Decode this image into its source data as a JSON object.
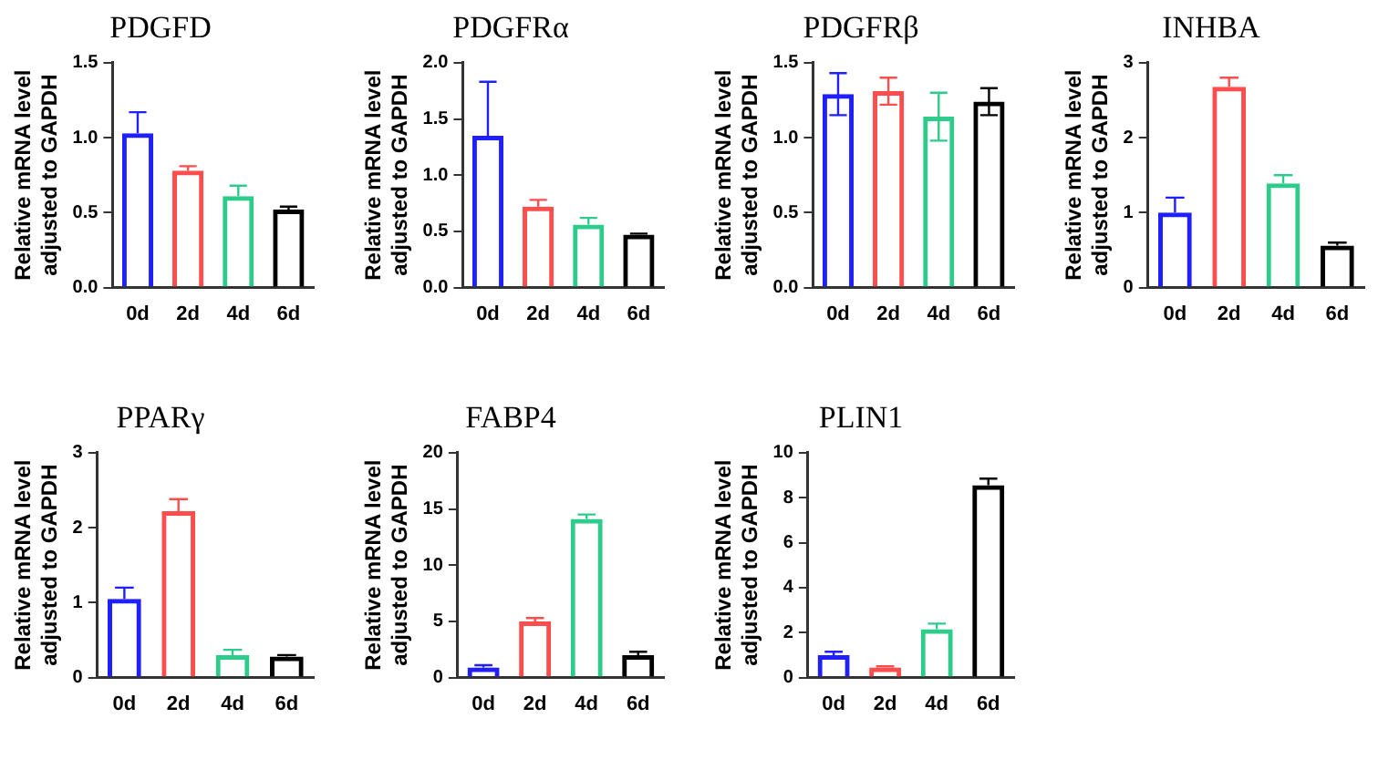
{
  "chart_data": [
    {
      "type": "bar",
      "title": "PDGFD",
      "ylabel": "Relative mRNA level adjusted to GAPDH",
      "categories": [
        "0d",
        "2d",
        "4d",
        "6d"
      ],
      "values": [
        1.03,
        0.78,
        0.61,
        0.52
      ],
      "colors": [
        "#1f1fff",
        "#ff4d4d",
        "#2ecc8a",
        "#000000"
      ],
      "errors": [
        [
          1.03,
          1.17
        ],
        [
          0.78,
          0.81
        ],
        [
          0.61,
          0.68
        ],
        [
          0.52,
          0.54
        ]
      ],
      "ylim": [
        0,
        1.5
      ],
      "yticks": [
        {
          "value": 0,
          "label": "0.0"
        },
        {
          "value": 0.5,
          "label": "0.5"
        },
        {
          "value": 1,
          "label": "1.0"
        },
        {
          "value": 1.5,
          "label": "1.5"
        }
      ],
      "grid": false,
      "legend": false
    },
    {
      "type": "bar",
      "title": "PDGFRα",
      "ylabel": "Relative mRNA level adjusted to GAPDH",
      "categories": [
        "0d",
        "2d",
        "4d",
        "6d"
      ],
      "values": [
        1.35,
        0.72,
        0.56,
        0.47
      ],
      "colors": [
        "#1f1fff",
        "#ff4d4d",
        "#2ecc8a",
        "#000000"
      ],
      "errors": [
        [
          1.35,
          1.83
        ],
        [
          0.72,
          0.78
        ],
        [
          0.56,
          0.62
        ],
        [
          0.47,
          0.48
        ]
      ],
      "ylim": [
        0,
        2
      ],
      "yticks": [
        {
          "value": 0,
          "label": "0.0"
        },
        {
          "value": 0.5,
          "label": "0.5"
        },
        {
          "value": 1,
          "label": "1.0"
        },
        {
          "value": 1.5,
          "label": "1.5"
        },
        {
          "value": 2,
          "label": "2.0"
        }
      ],
      "grid": false,
      "legend": false
    },
    {
      "type": "bar",
      "title": "PDGFRβ",
      "ylabel": "Relative mRNA level adjusted to GAPDH",
      "categories": [
        "0d",
        "2d",
        "4d",
        "6d"
      ],
      "values": [
        1.29,
        1.31,
        1.14,
        1.24
      ],
      "colors": [
        "#1f1fff",
        "#ff4d4d",
        "#2ecc8a",
        "#000000"
      ],
      "errors": [
        [
          1.15,
          1.43
        ],
        [
          1.22,
          1.4
        ],
        [
          0.98,
          1.3
        ],
        [
          1.15,
          1.33
        ]
      ],
      "ylim": [
        0,
        1.5
      ],
      "yticks": [
        {
          "value": 0,
          "label": "0.0"
        },
        {
          "value": 0.5,
          "label": "0.5"
        },
        {
          "value": 1,
          "label": "1.0"
        },
        {
          "value": 1.5,
          "label": "1.5"
        }
      ],
      "grid": false,
      "legend": false
    },
    {
      "type": "bar",
      "title": "INHBA",
      "ylabel": "Relative mRNA level adjusted to GAPDH",
      "categories": [
        "0d",
        "2d",
        "4d",
        "6d"
      ],
      "values": [
        1.0,
        2.68,
        1.39,
        0.56
      ],
      "colors": [
        "#1f1fff",
        "#ff4d4d",
        "#2ecc8a",
        "#000000"
      ],
      "errors": [
        [
          1.0,
          1.2
        ],
        [
          2.68,
          2.8
        ],
        [
          1.39,
          1.5
        ],
        [
          0.56,
          0.6
        ]
      ],
      "ylim": [
        0,
        3
      ],
      "yticks": [
        0,
        1,
        2,
        3
      ],
      "grid": false,
      "legend": false
    },
    {
      "type": "bar",
      "title": "PPARγ",
      "ylabel": "Relative mRNA level adjusted to GAPDH",
      "categories": [
        "0d",
        "2d",
        "4d",
        "6d"
      ],
      "values": [
        1.05,
        2.22,
        0.3,
        0.28
      ],
      "colors": [
        "#1f1fff",
        "#ff4d4d",
        "#2ecc8a",
        "#000000"
      ],
      "errors": [
        [
          1.05,
          1.2
        ],
        [
          2.22,
          2.38
        ],
        [
          0.3,
          0.37
        ],
        [
          0.28,
          0.3
        ]
      ],
      "ylim": [
        0,
        3
      ],
      "yticks": [
        0,
        1,
        2,
        3
      ],
      "grid": false,
      "legend": false
    },
    {
      "type": "bar",
      "title": "FABP4",
      "ylabel": "Relative mRNA level adjusted to GAPDH",
      "categories": [
        "0d",
        "2d",
        "4d",
        "6d"
      ],
      "values": [
        0.9,
        5.0,
        14.1,
        2.0
      ],
      "colors": [
        "#1f1fff",
        "#ff4d4d",
        "#2ecc8a",
        "#000000"
      ],
      "errors": [
        [
          0.9,
          1.1
        ],
        [
          5.0,
          5.3
        ],
        [
          14.1,
          14.5
        ],
        [
          2.0,
          2.3
        ]
      ],
      "ylim": [
        0,
        20
      ],
      "yticks": [
        0,
        5,
        10,
        15,
        20
      ],
      "grid": false,
      "legend": false
    },
    {
      "type": "bar",
      "title": "PLIN1",
      "ylabel": "Relative mRNA level adjusted to GAPDH",
      "categories": [
        "0d",
        "2d",
        "4d",
        "6d"
      ],
      "values": [
        1.0,
        0.45,
        2.15,
        8.55
      ],
      "colors": [
        "#1f1fff",
        "#ff4d4d",
        "#2ecc8a",
        "#000000"
      ],
      "errors": [
        [
          1.0,
          1.15
        ],
        [
          0.45,
          0.5
        ],
        [
          2.15,
          2.4
        ],
        [
          8.55,
          8.85
        ]
      ],
      "ylim": [
        0,
        10
      ],
      "yticks": [
        0,
        2,
        4,
        6,
        8,
        10
      ],
      "grid": false,
      "legend": false
    }
  ]
}
